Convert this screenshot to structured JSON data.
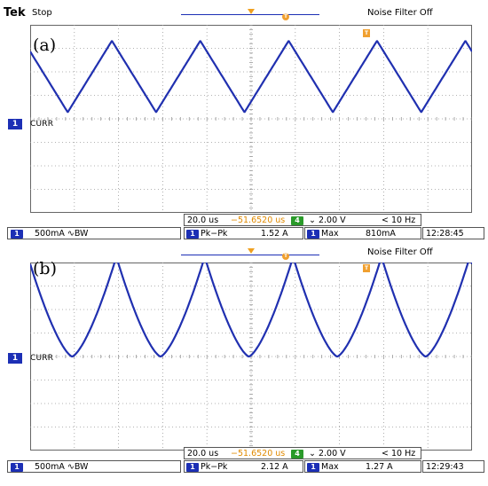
{
  "scopes": [
    {
      "id": "a",
      "brand": "Tek",
      "run_state": "Stop",
      "noise_filter": "Noise Filter Off",
      "panel_label": "(a)",
      "channel_marker": "1",
      "channel_label": "CURR",
      "trigger_marker": "T",
      "horizontal": {
        "timebase": "20.0 us",
        "delay": "−51.6520 us",
        "trig_channel": "4",
        "trig_slope_level": "⌄ 2.00 V",
        "trig_freq": "< 10 Hz"
      },
      "status": {
        "ch_num": "1",
        "ch_scale": "500mA ∿BW",
        "m1_num": "1",
        "m1_label": "Pk−Pk",
        "m1_value": "1.52 A",
        "m2_num": "1",
        "m2_label": "Max",
        "m2_value": "810mA",
        "time": "12:28:45"
      },
      "waveform": {
        "type": "triangle",
        "peak_to_peak_A": 1.52,
        "max_A": 0.81,
        "period_us": 40.0
      }
    },
    {
      "id": "b",
      "brand": "",
      "run_state": "",
      "noise_filter": "Noise Filter Off",
      "panel_label": "(b)",
      "channel_marker": "1",
      "channel_label": "CURR",
      "trigger_marker": "T",
      "horizontal": {
        "timebase": "20.0 us",
        "delay": "−51.6520 us",
        "trig_channel": "4",
        "trig_slope_level": "⌄ 2.00 V",
        "trig_freq": "< 10 Hz"
      },
      "status": {
        "ch_num": "1",
        "ch_scale": "500mA ∿BW",
        "m1_num": "1",
        "m1_label": "Pk−Pk",
        "m1_value": "2.12 A",
        "m2_num": "1",
        "m2_label": "Max",
        "m2_value": "1.27 A",
        "time": "12:29:43"
      },
      "waveform": {
        "type": "cusp",
        "peak_to_peak_A": 2.12,
        "max_A": 1.27,
        "period_us": 40.0
      }
    }
  ],
  "colors": {
    "trace": "#2030b0",
    "grid": "#9a9a9a",
    "marker": "#1c2fb5",
    "trigger": "#f0a030"
  },
  "icons": {
    "channel_marker": "channel-1-badge",
    "trigger_marker": "trigger-t-icon",
    "trigger_position": "trigger-arrow-icon"
  }
}
